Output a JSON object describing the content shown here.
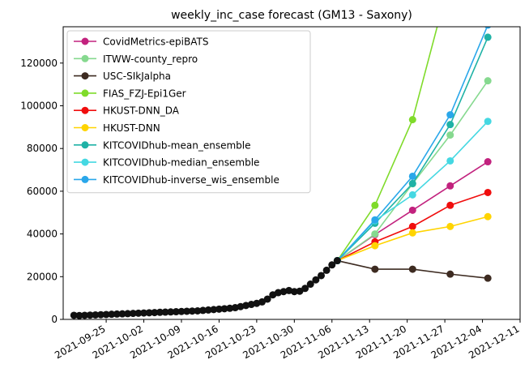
{
  "chart_data": {
    "type": "line",
    "title": "weekly_inc_case forecast (GM13 - Saxony)",
    "xlim": [
      "2021-09-17",
      "2021-12-11"
    ],
    "xticks": [
      "2021-09-25",
      "2021-10-02",
      "2021-10-09",
      "2021-10-16",
      "2021-10-23",
      "2021-10-30",
      "2021-11-06",
      "2021-11-13",
      "2021-11-20",
      "2021-11-27",
      "2021-12-04",
      "2021-12-11"
    ],
    "ylim": [
      0,
      137000
    ],
    "yticks": [
      0,
      20000,
      40000,
      60000,
      80000,
      100000,
      120000
    ],
    "legend": "upper left",
    "observed": {
      "color": "#111111",
      "x": [
        "2021-09-19",
        "2021-09-20",
        "2021-09-21",
        "2021-09-22",
        "2021-09-23",
        "2021-09-24",
        "2021-09-25",
        "2021-09-26",
        "2021-09-27",
        "2021-09-28",
        "2021-09-29",
        "2021-09-30",
        "2021-10-01",
        "2021-10-02",
        "2021-10-03",
        "2021-10-04",
        "2021-10-05",
        "2021-10-06",
        "2021-10-07",
        "2021-10-08",
        "2021-10-09",
        "2021-10-10",
        "2021-10-11",
        "2021-10-12",
        "2021-10-13",
        "2021-10-14",
        "2021-10-15",
        "2021-10-16",
        "2021-10-17",
        "2021-10-18",
        "2021-10-19",
        "2021-10-20",
        "2021-10-21",
        "2021-10-22",
        "2021-10-23",
        "2021-10-24",
        "2021-10-25",
        "2021-10-26",
        "2021-10-27",
        "2021-10-28",
        "2021-10-29",
        "2021-10-30",
        "2021-10-31",
        "2021-11-01",
        "2021-11-02",
        "2021-11-03",
        "2021-11-04",
        "2021-11-05",
        "2021-11-06",
        "2021-11-07"
      ],
      "values": [
        1900,
        1800,
        1900,
        2000,
        2100,
        2200,
        2300,
        2400,
        2500,
        2600,
        2700,
        2800,
        2900,
        3000,
        3100,
        3200,
        3300,
        3400,
        3500,
        3600,
        3700,
        3800,
        3900,
        4000,
        4200,
        4400,
        4600,
        4800,
        5000,
        5200,
        5500,
        6000,
        6500,
        7000,
        7500,
        8200,
        9500,
        11500,
        12500,
        13000,
        13500,
        13000,
        13200,
        14500,
        16500,
        18500,
        20500,
        23000,
        25500,
        27500
      ]
    },
    "forecast_x": [
      "2021-11-07",
      "2021-11-14",
      "2021-11-21",
      "2021-11-28",
      "2021-12-05"
    ],
    "series": [
      {
        "name": "CovidMetrics-epiBATS",
        "color": "#c2227e",
        "values": [
          27500,
          39700,
          51100,
          62500,
          73800
        ]
      },
      {
        "name": "ITWW-county_repro",
        "color": "#86d98f",
        "values": [
          27500,
          40000,
          63500,
          86300,
          111700
        ]
      },
      {
        "name": "USC-SIkJalpha",
        "color": "#3d2b21",
        "values": [
          27500,
          23500,
          23500,
          21200,
          19300
        ]
      },
      {
        "name": "FIAS_FZJ-Epi1Ger",
        "color": "#7fdb2a",
        "values": [
          27500,
          53400,
          93500,
          160000,
          null
        ]
      },
      {
        "name": "HKUST-DNN_DA",
        "color": "#f00d0d",
        "values": [
          27500,
          36300,
          43500,
          53400,
          59400
        ]
      },
      {
        "name": "HKUST-DNN",
        "color": "#ffd400",
        "values": [
          27500,
          34500,
          40500,
          43500,
          48100
        ]
      },
      {
        "name": "KITCOVIDhub-mean_ensemble",
        "color": "#1fb2a6",
        "values": [
          27500,
          45000,
          63600,
          91200,
          132100
        ]
      },
      {
        "name": "KITCOVIDhub-median_ensemble",
        "color": "#45d8e2",
        "values": [
          27500,
          46200,
          58300,
          74200,
          92700
        ]
      },
      {
        "name": "KITCOVIDhub-inverse_wis_ensemble",
        "color": "#2aa7ea",
        "values": [
          27500,
          46600,
          67000,
          95800,
          137800
        ]
      }
    ]
  }
}
